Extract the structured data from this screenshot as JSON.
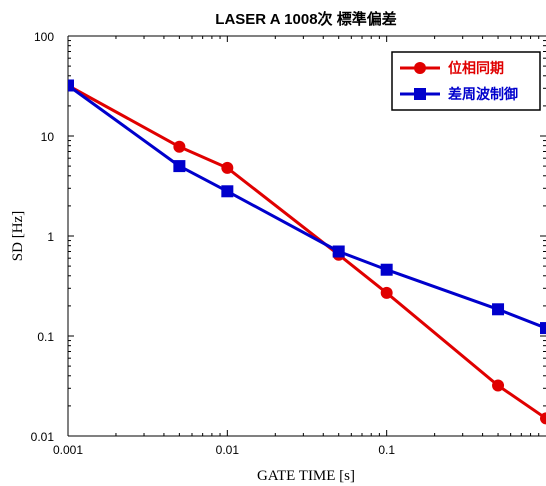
{
  "chart_data": {
    "type": "line",
    "title": "LASER A 1008次  標準偏差",
    "xlabel": "GATE TIME [s]",
    "ylabel": "SD [Hz]",
    "xscale": "log",
    "yscale": "log",
    "xlim": [
      0.001,
      1
    ],
    "ylim": [
      0.01,
      100
    ],
    "x_ticks": [
      "0.001",
      "0.01",
      "0.1"
    ],
    "y_ticks": [
      "100",
      "10",
      "1",
      "0.1",
      "0.01"
    ],
    "grid": false,
    "legend_position": "top-right",
    "series": [
      {
        "name": "位相同期",
        "color": "#e00000",
        "marker": "circle",
        "points": [
          {
            "x": 0.001,
            "y": 32
          },
          {
            "x": 0.005,
            "y": 7.8
          },
          {
            "x": 0.01,
            "y": 4.8
          },
          {
            "x": 0.05,
            "y": 0.65
          },
          {
            "x": 0.1,
            "y": 0.27
          },
          {
            "x": 0.5,
            "y": 0.032
          },
          {
            "x": 1,
            "y": 0.015
          }
        ]
      },
      {
        "name": "差周波制御",
        "color": "#0000cc",
        "marker": "square",
        "points": [
          {
            "x": 0.001,
            "y": 32
          },
          {
            "x": 0.005,
            "y": 5.0
          },
          {
            "x": 0.01,
            "y": 2.8
          },
          {
            "x": 0.05,
            "y": 0.7
          },
          {
            "x": 0.1,
            "y": 0.46
          },
          {
            "x": 0.5,
            "y": 0.185
          },
          {
            "x": 1,
            "y": 0.12
          }
        ]
      }
    ]
  }
}
